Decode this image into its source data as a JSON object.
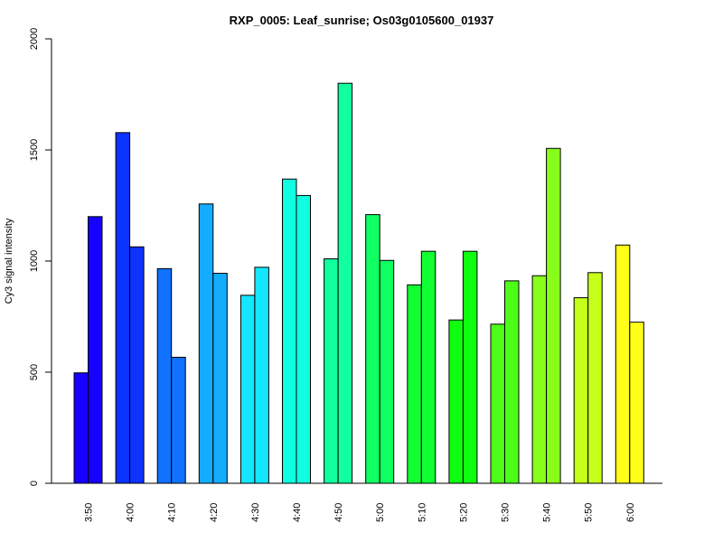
{
  "chart_data": {
    "type": "bar",
    "title": "RXP_0005: Leaf_sunrise; Os03g0105600_01937",
    "xlabel": "",
    "ylabel": "Cy3 signal intensity",
    "ylim": [
      0,
      2000
    ],
    "yticks": [
      0,
      500,
      1000,
      1500,
      2000
    ],
    "grid": false,
    "legend": "none",
    "categories": [
      "3:50",
      "4:00",
      "4:10",
      "4:20",
      "4:30",
      "4:40",
      "4:50",
      "5:00",
      "5:10",
      "5:20",
      "5:30",
      "5:40",
      "5:50",
      "6:00"
    ],
    "colors": [
      "#1600ff",
      "#0c33ff",
      "#1072ff",
      "#14acff",
      "#13e6ff",
      "#10ffe0",
      "#11ff9e",
      "#10ff62",
      "#12ff34",
      "#10ff10",
      "#4dff18",
      "#88ff1b",
      "#c5ff1a",
      "#ffff1a"
    ],
    "series": [
      {
        "values": [
          497,
          1578,
          966,
          1257,
          846,
          1369,
          1010,
          1209,
          893,
          735,
          716,
          934,
          835,
          1072
        ]
      },
      {
        "values": [
          1200,
          1064,
          567,
          945,
          972,
          1295,
          1800,
          1003,
          1044,
          1044,
          911,
          1507,
          948,
          725
        ]
      }
    ]
  }
}
